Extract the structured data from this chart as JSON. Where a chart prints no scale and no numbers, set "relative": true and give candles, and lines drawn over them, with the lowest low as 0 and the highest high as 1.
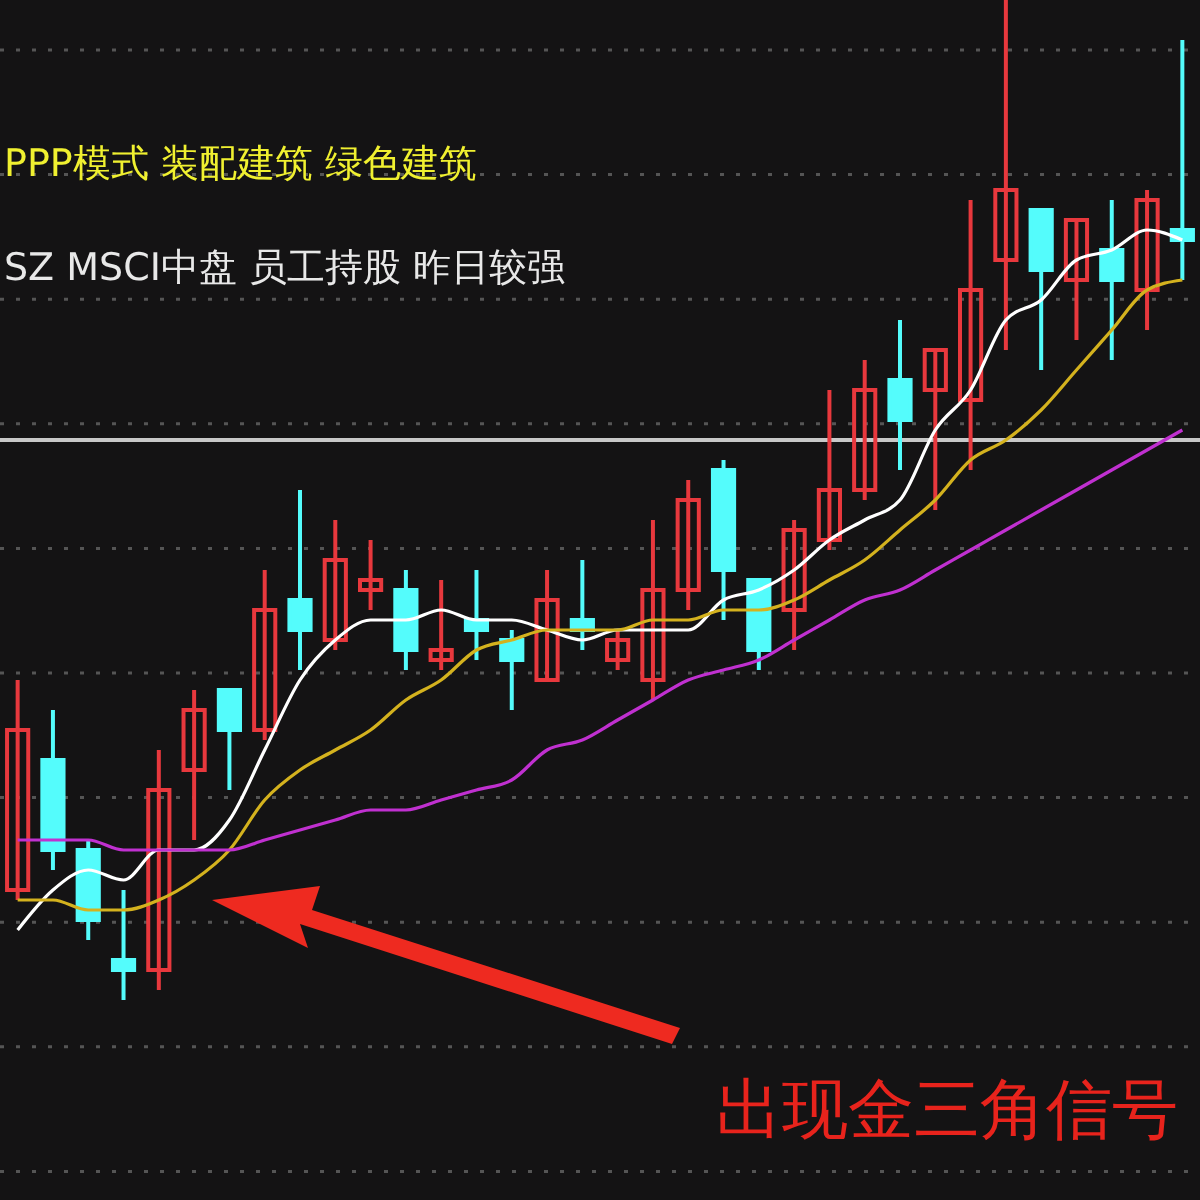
{
  "chart_data": {
    "type": "candlestick",
    "relative": true,
    "title": "PPP模式 装配建筑 绿色建筑",
    "subtitle": "SZ MSCI中盘 员工持股 昨日较强",
    "annotations": [
      "出现金三角信号"
    ],
    "categories": [
      null,
      null,
      null,
      null,
      null,
      null,
      null,
      null,
      null,
      null,
      null,
      null,
      null,
      null,
      null,
      null,
      null,
      null,
      null,
      null,
      null,
      null,
      null,
      null,
      null,
      null,
      null,
      null,
      null,
      null,
      null,
      null,
      null,
      null
    ],
    "ohlc": [
      [
        0.11,
        0.32,
        0.1,
        0.27
      ],
      [
        0.24,
        0.29,
        0.13,
        0.15
      ],
      [
        0.15,
        0.16,
        0.06,
        0.08
      ],
      [
        0.04,
        0.11,
        0,
        0.03
      ],
      [
        0.03,
        0.25,
        0.01,
        0.21
      ],
      [
        0.23,
        0.31,
        0.16,
        0.29
      ],
      [
        0.31,
        0.31,
        0.21,
        0.27
      ],
      [
        0.27,
        0.43,
        0.26,
        0.39
      ],
      [
        0.4,
        0.51,
        0.33,
        0.37
      ],
      [
        0.36,
        0.48,
        0.35,
        0.44
      ],
      [
        0.41,
        0.46,
        0.39,
        0.42
      ],
      [
        0.41,
        0.43,
        0.33,
        0.35
      ],
      [
        0.34,
        0.42,
        0.33,
        0.35
      ],
      [
        0.38,
        0.43,
        0.34,
        0.37
      ],
      [
        0.36,
        0.37,
        0.29,
        0.34
      ],
      [
        0.32,
        0.43,
        0.32,
        0.4
      ],
      [
        0.38,
        0.44,
        0.35,
        0.37
      ],
      [
        0.34,
        0.37,
        0.33,
        0.36
      ],
      [
        0.32,
        0.48,
        0.3,
        0.41
      ],
      [
        0.41,
        0.52,
        0.39,
        0.5
      ],
      [
        0.53,
        0.54,
        0.38,
        0.43
      ],
      [
        0.42,
        0.42,
        0.33,
        0.35
      ],
      [
        0.39,
        0.48,
        0.35,
        0.47
      ],
      [
        0.46,
        0.61,
        0.45,
        0.51
      ],
      [
        0.51,
        0.64,
        0.5,
        0.61
      ],
      [
        0.62,
        0.68,
        0.53,
        0.58
      ],
      [
        0.61,
        0.65,
        0.49,
        0.65
      ],
      [
        0.6,
        0.8,
        0.53,
        0.71
      ],
      [
        0.74,
        1,
        0.65,
        0.81
      ],
      [
        0.79,
        0.79,
        0.63,
        0.73
      ],
      [
        0.72,
        0.78,
        0.66,
        0.78
      ],
      [
        0.75,
        0.8,
        0.64,
        0.72
      ],
      [
        0.71,
        0.81,
        0.67,
        0.8
      ],
      [
        0.77,
        0.96,
        0.72,
        0.76
      ]
    ],
    "colors": [
      "#e8383d",
      "#54fcfc",
      "#54fcfc",
      "#54fcfc",
      "#e8383d",
      "#e8383d",
      "#54fcfc",
      "#e8383d",
      "#54fcfc",
      "#e8383d",
      "#e8383d",
      "#54fcfc",
      "#e8383d",
      "#54fcfc",
      "#54fcfc",
      "#e8383d",
      "#54fcfc",
      "#e8383d",
      "#e8383d",
      "#e8383d",
      "#54fcfc",
      "#54fcfc",
      "#e8383d",
      "#e8383d",
      "#e8383d",
      "#54fcfc",
      "#e8383d",
      "#e8383d",
      "#e8383d",
      "#54fcfc",
      "#e8383d",
      "#54fcfc",
      "#e8383d",
      "#54fcfc"
    ],
    "series": [
      {
        "type": "line",
        "color": "#ffffff",
        "values": [
          0.07,
          0.11,
          0.13,
          0.12,
          0.15,
          0.15,
          0.18,
          0.25,
          0.32,
          0.36,
          0.38,
          0.38,
          0.39,
          0.38,
          0.38,
          0.37,
          0.36,
          0.37,
          0.37,
          0.37,
          0.4,
          0.41,
          0.43,
          0.46,
          0.48,
          0.5,
          0.57,
          0.61,
          0.68,
          0.7,
          0.74,
          0.75,
          0.77,
          0.76
        ]
      },
      {
        "type": "line",
        "color": "#d4b21e",
        "values": [
          0.1,
          0.1,
          0.09,
          0.09,
          0.1,
          0.12,
          0.15,
          0.2,
          0.23,
          0.25,
          0.27,
          0.3,
          0.32,
          0.35,
          0.36,
          0.37,
          0.37,
          0.37,
          0.38,
          0.38,
          0.39,
          0.39,
          0.4,
          0.42,
          0.44,
          0.47,
          0.5,
          0.54,
          0.56,
          0.59,
          0.63,
          0.67,
          0.71,
          0.72
        ]
      },
      {
        "type": "line",
        "color": "#c030d0",
        "values": [
          0.16,
          0.16,
          0.16,
          0.15,
          0.15,
          0.15,
          0.15,
          0.16,
          0.17,
          0.18,
          0.19,
          0.19,
          0.2,
          0.21,
          0.22,
          0.25,
          0.26,
          0.28,
          0.3,
          0.32,
          0.33,
          0.34,
          0.36,
          0.38,
          0.4,
          0.41,
          0.43,
          0.45,
          0.47,
          0.49,
          0.51,
          0.53,
          0.55,
          0.57
        ]
      }
    ],
    "ref_lines": [
      {
        "axis": "y",
        "value": 0.56,
        "color": "#c8c8c8"
      }
    ],
    "grid": true
  }
}
